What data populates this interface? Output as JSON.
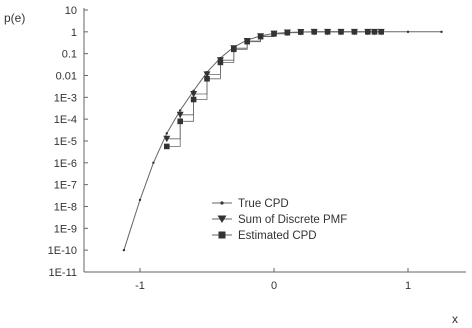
{
  "chart_data": {
    "type": "line",
    "title": "",
    "xlabel": "x",
    "ylabel": "p(e)",
    "xlim": [
      -1.3,
      1.5
    ],
    "ylim_log10": [
      -11,
      1
    ],
    "yscale": "log",
    "grid": false,
    "legend_position": "lower-center",
    "x_ticks": [
      -1,
      0,
      1
    ],
    "x_tick_labels": [
      "-1",
      "0",
      "1"
    ],
    "y_ticks_log10": [
      1,
      0,
      -1,
      -2,
      -3,
      -4,
      -5,
      -6,
      -7,
      -8,
      -9,
      -10,
      -11
    ],
    "y_tick_labels": [
      "10",
      "1",
      "0.1",
      "0.01",
      "1E-3",
      "1E-4",
      "1E-5",
      "1E-6",
      "1E-7",
      "1E-8",
      "1E-9",
      "1E-10",
      "1E-11"
    ],
    "colors": {
      "line": "#666666",
      "marker": "#333333",
      "axis": "#666666"
    },
    "series": [
      {
        "name": "True CPD",
        "marker": "dot",
        "x": [
          -1.12,
          -1.0,
          -0.9,
          -0.8,
          -0.7,
          -0.6,
          -0.5,
          -0.4,
          -0.3,
          -0.2,
          -0.1,
          0.0,
          0.1,
          0.2,
          0.3,
          0.4,
          0.5,
          0.6,
          0.7,
          0.8,
          1.0,
          1.25
        ],
        "log10_y": [
          -10.0,
          -7.7,
          -6.0,
          -4.65,
          -3.6,
          -2.7,
          -1.85,
          -1.2,
          -0.7,
          -0.38,
          -0.18,
          -0.07,
          -0.03,
          -0.01,
          0.0,
          0.0,
          0.0,
          0.0,
          0.0,
          0.0,
          0.0,
          0.0
        ]
      },
      {
        "name": "Sum of Discrete PMF",
        "marker": "triangle-down",
        "x": [
          -0.8,
          -0.7,
          -0.6,
          -0.5,
          -0.4,
          -0.3,
          -0.2,
          -0.1,
          0.0,
          0.1,
          0.2,
          0.3,
          0.4,
          0.5,
          0.6,
          0.7,
          0.75,
          0.8
        ],
        "log10_y": [
          -4.9,
          -3.8,
          -2.85,
          -1.95,
          -1.3,
          -0.75,
          -0.42,
          -0.2,
          -0.08,
          -0.03,
          -0.01,
          0.0,
          0.0,
          0.0,
          0.0,
          0.0,
          0.0,
          0.0
        ]
      },
      {
        "name": "Estimated CPD",
        "marker": "square",
        "x": [
          -0.8,
          -0.7,
          -0.6,
          -0.5,
          -0.4,
          -0.3,
          -0.2,
          -0.1,
          0.0,
          0.1,
          0.2,
          0.3,
          0.4,
          0.5,
          0.6,
          0.7,
          0.75,
          0.8
        ],
        "log10_y": [
          -5.25,
          -4.1,
          -3.1,
          -2.15,
          -1.4,
          -0.8,
          -0.45,
          -0.22,
          -0.09,
          -0.04,
          -0.01,
          0.0,
          0.0,
          0.0,
          0.0,
          0.0,
          0.0,
          0.0
        ]
      }
    ]
  }
}
